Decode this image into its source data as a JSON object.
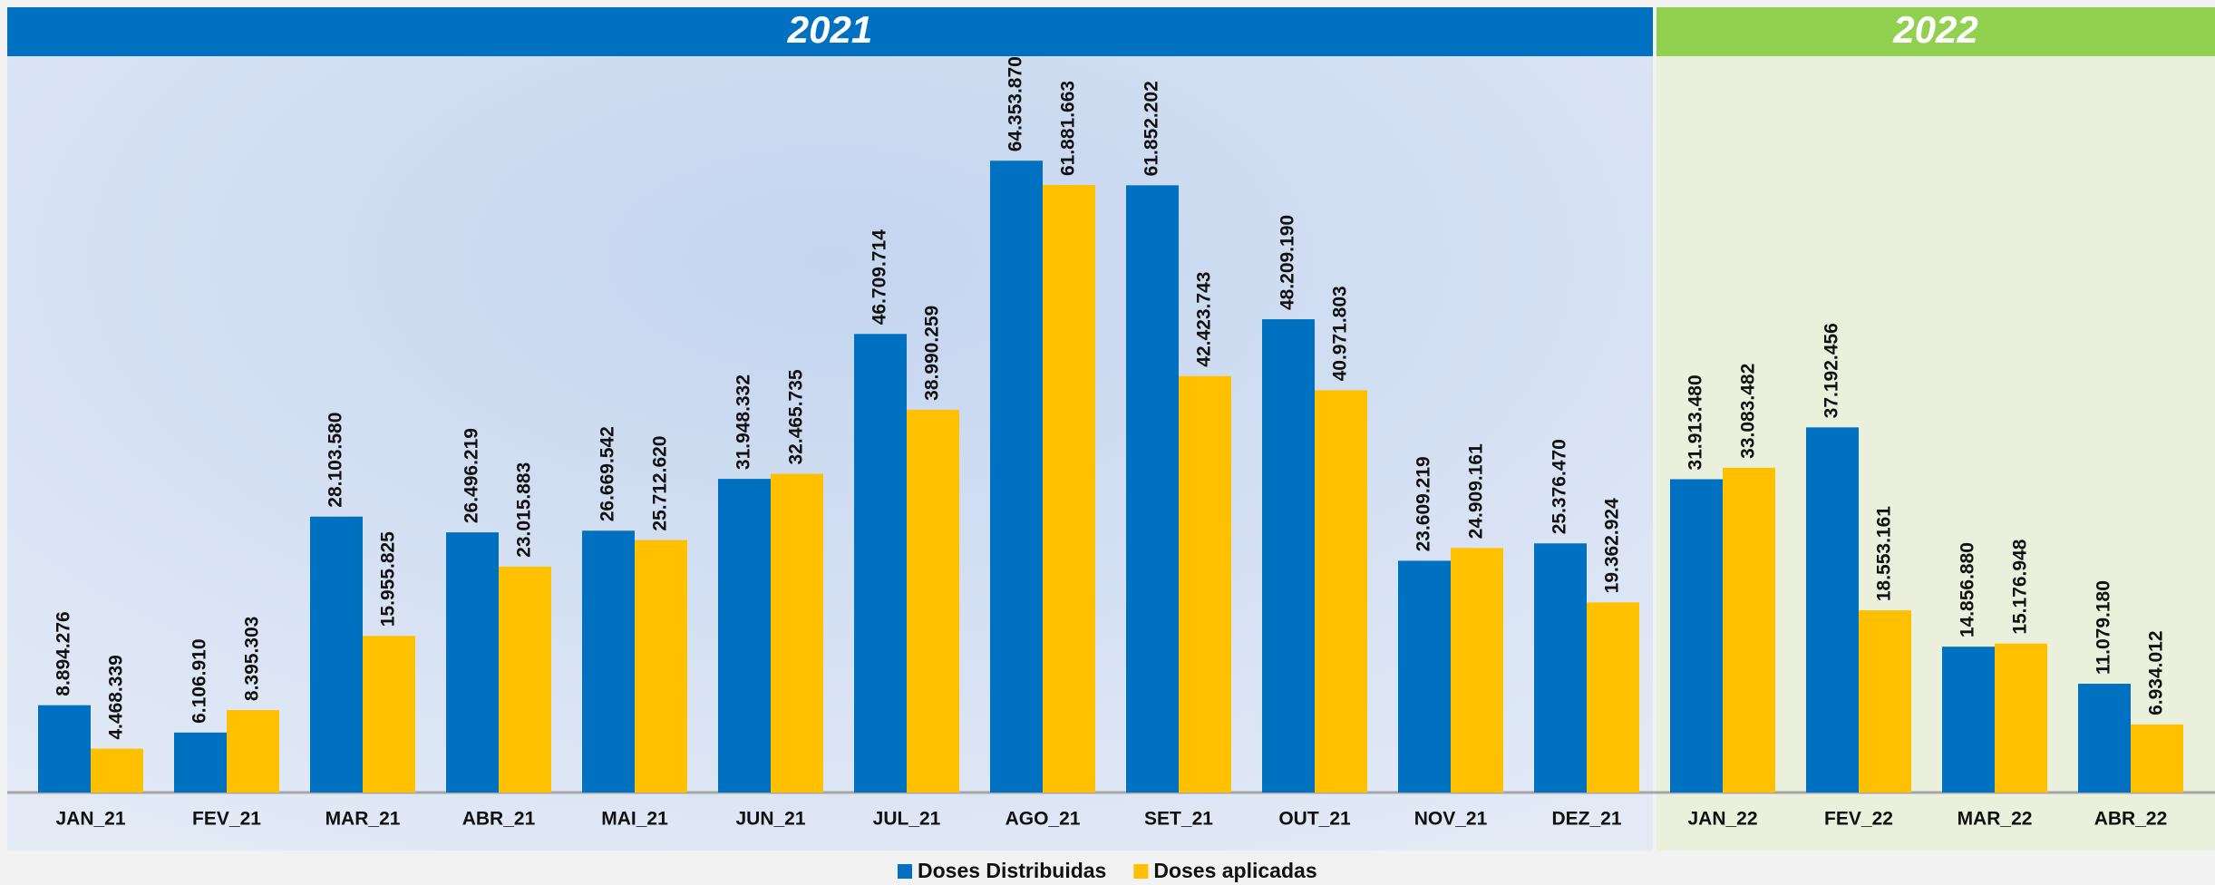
{
  "chart_data": {
    "type": "bar",
    "groups": [
      {
        "label": "2021",
        "color": "#0070c0",
        "count": 12
      },
      {
        "label": "2022",
        "color": "#92d050",
        "count": 4
      }
    ],
    "categories": [
      "JAN_21",
      "FEV_21",
      "MAR_21",
      "ABR_21",
      "MAI_21",
      "JUN_21",
      "JUL_21",
      "AGO_21",
      "SET_21",
      "OUT_21",
      "NOV_21",
      "DEZ_21",
      "JAN_22",
      "FEV_22",
      "MAR_22",
      "ABR_22"
    ],
    "series": [
      {
        "name": "Doses Distribuidas",
        "color": "#0070c0",
        "values": [
          8894276,
          6106910,
          28103580,
          26496219,
          26669542,
          31948332,
          46709714,
          64353870,
          61852202,
          48209190,
          23609219,
          25376470,
          31913480,
          37192456,
          14856880,
          11079180
        ],
        "value_labels": [
          "8.894.276",
          "6.106.910",
          "28.103.580",
          "26.496.219",
          "26.669.542",
          "31.948.332",
          "46.709.714",
          "64.353.870",
          "61.852.202",
          "48.209.190",
          "23.609.219",
          "25.376.470",
          "31.913.480",
          "37.192.456",
          "14.856.880",
          "11.079.180"
        ]
      },
      {
        "name": "Doses aplicadas",
        "color": "#ffc000",
        "values": [
          4468339,
          8395303,
          15955825,
          23015883,
          25712620,
          32465735,
          38990259,
          61881663,
          42423743,
          40971803,
          24909161,
          19362924,
          33083482,
          18553161,
          15176948,
          6934012
        ],
        "value_labels": [
          "4.468.339",
          "8.395.303",
          "15.955.825",
          "23.015.883",
          "25.712.620",
          "32.465.735",
          "38.990.259",
          "61.881.663",
          "42.423.743",
          "40.971.803",
          "24.909.161",
          "19.362.924",
          "33.083.482",
          "18.553.161",
          "15.176.948",
          "6.934.012"
        ]
      }
    ],
    "ylim": [
      0,
      75000000
    ]
  }
}
